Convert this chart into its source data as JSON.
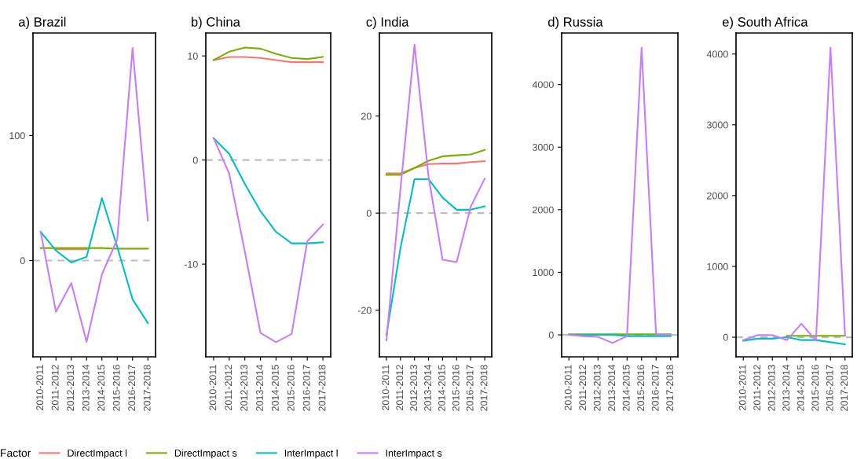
{
  "chart_data": [
    {
      "type": "line",
      "title": "a) Brazil",
      "legend": "bottom",
      "legend_title": "Factor",
      "categories": [
        "2010-2011",
        "2011-2012",
        "2012-2013",
        "2013-2014",
        "2014-2015",
        "2015-2016",
        "2016-2017",
        "2017-2018"
      ],
      "ylim": [
        -77,
        182
      ],
      "yticks": [
        0,
        100
      ],
      "grid": false,
      "ref_lines": [
        {
          "axis": "y",
          "value": 0,
          "color": "#bebebe",
          "line_style": "dashed"
        }
      ],
      "series": [
        {
          "name": "DirectImpact l",
          "color": "#f8766d",
          "values": [
            null,
            9,
            9,
            9,
            null,
            null,
            null,
            null
          ]
        },
        {
          "name": "DirectImpact s",
          "color": "#7cae00",
          "values": [
            10,
            10,
            10,
            10,
            10,
            9.5,
            9.5,
            9.5
          ]
        },
        {
          "name": "InterImpact l",
          "color": "#00bfc4",
          "values": [
            23,
            8,
            -1.5,
            3,
            50,
            11,
            -31,
            -50
          ]
        },
        {
          "name": "InterImpact s",
          "color": "#c77cff",
          "values": [
            23,
            -41,
            -18,
            -65,
            -11,
            17,
            170,
            32
          ]
        }
      ]
    },
    {
      "type": "line",
      "title": "b) China",
      "categories": [
        "2010-2011",
        "2011-2012",
        "2012-2013",
        "2013-2014",
        "2014-2015",
        "2015-2016",
        "2016-2017",
        "2017-2018"
      ],
      "ylim": [
        -18.9,
        12.2
      ],
      "yticks": [
        -10,
        0,
        10
      ],
      "grid": false,
      "ref_lines": [
        {
          "axis": "y",
          "value": 0,
          "color": "#bebebe",
          "line_style": "dashed"
        }
      ],
      "series": [
        {
          "color": "#f8766d",
          "values": [
            9.6,
            9.9,
            9.9,
            9.8,
            9.6,
            9.4,
            9.4,
            9.4
          ]
        },
        {
          "color": "#7cae00",
          "values": [
            9.6,
            10.4,
            10.8,
            10.7,
            10.2,
            9.8,
            9.7,
            9.9
          ]
        },
        {
          "color": "#00bfc4",
          "values": [
            2.1,
            0.6,
            -2.3,
            -4.9,
            -6.9,
            -8.0,
            -8.0,
            -7.9
          ]
        },
        {
          "color": "#c77cff",
          "values": [
            2.1,
            -1.3,
            -8.8,
            -16.6,
            -17.5,
            -16.7,
            -7.8,
            -6.2
          ]
        }
      ]
    },
    {
      "type": "line",
      "title": "c) India",
      "categories": [
        "2010-2011",
        "2011-2012",
        "2012-2013",
        "2013-2014",
        "2014-2015",
        "2015-2016",
        "2016-2017",
        "2017-2018"
      ],
      "ylim": [
        -29.6,
        37.1
      ],
      "yticks": [
        -20,
        0,
        20
      ],
      "grid": false,
      "ref_lines": [
        {
          "axis": "y",
          "value": 0,
          "color": "#bebebe",
          "line_style": "dashed"
        }
      ],
      "series": [
        {
          "color": "#f8766d",
          "values": [
            8.2,
            8.2,
            9.3,
            10.1,
            10.2,
            10.2,
            10.5,
            10.7
          ]
        },
        {
          "color": "#7cae00",
          "values": [
            7.9,
            7.9,
            9.3,
            10.8,
            11.7,
            11.9,
            12.1,
            13.0
          ]
        },
        {
          "color": "#00bfc4",
          "values": [
            -25.1,
            -7.2,
            7,
            7,
            3.2,
            0.7,
            0.7,
            1.4
          ]
        },
        {
          "color": "#c77cff",
          "values": [
            -26.2,
            5,
            34.7,
            7.5,
            -9.6,
            -10.1,
            1.3,
            7.1
          ]
        }
      ]
    },
    {
      "type": "line",
      "title": "d) Russia",
      "categories": [
        "2010-2011",
        "2011-2012",
        "2012-2013",
        "2013-2014",
        "2014-2015",
        "2015-2016",
        "2016-2017",
        "2017-2018"
      ],
      "ylim": [
        -351,
        4824
      ],
      "yticks": [
        0,
        1000,
        2000,
        3000,
        4000
      ],
      "grid": false,
      "ref_lines": [
        {
          "axis": "y",
          "value": 0,
          "color": "#bebebe",
          "line_style": "dashed"
        }
      ],
      "series": [
        {
          "color": "#7cae00",
          "values": [
            10,
            10,
            10,
            10,
            10,
            10,
            10,
            10
          ]
        },
        {
          "color": "#00bfc4",
          "values": [
            0,
            0,
            0,
            0,
            -20,
            -20,
            -20,
            -20
          ]
        },
        {
          "color": "#c77cff",
          "values": [
            0,
            -20,
            -30,
            -130,
            -20,
            4590,
            0,
            0
          ]
        }
      ]
    },
    {
      "type": "line",
      "title": "e) South Africa",
      "categories": [
        "2010-2011",
        "2011-2012",
        "2012-2013",
        "2013-2014",
        "2014-2015",
        "2015-2016",
        "2016-2017",
        "2017-2018"
      ],
      "ylim": [
        -277,
        4296
      ],
      "yticks": [
        0,
        1000,
        2000,
        3000,
        4000
      ],
      "grid": false,
      "ref_lines": [
        {
          "axis": "y",
          "value": 0,
          "color": "#bebebe",
          "line_style": "dashed"
        }
      ],
      "series": [
        {
          "color": "#7cae00",
          "values": [
            null,
            null,
            null,
            20,
            20,
            20,
            20,
            20
          ]
        },
        {
          "color": "#00bfc4",
          "values": [
            -50,
            -20,
            -20,
            0,
            -40,
            -40,
            -70,
            -100
          ]
        },
        {
          "color": "#c77cff",
          "values": [
            -40,
            30,
            30,
            -40,
            190,
            -50,
            4090,
            30
          ]
        }
      ]
    }
  ]
}
